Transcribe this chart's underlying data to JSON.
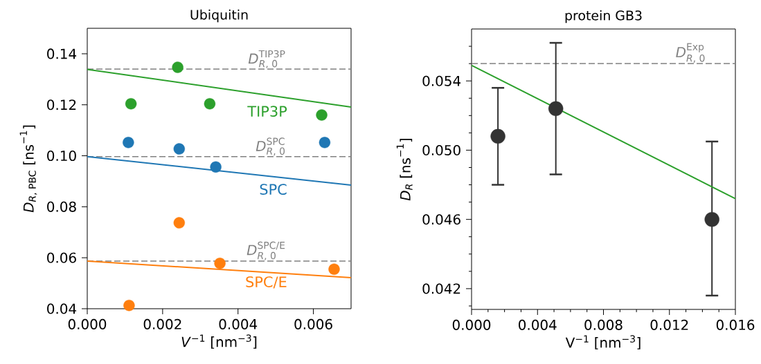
{
  "chart_data": [
    {
      "type": "scatter",
      "title": "Ubiquitin",
      "xlabel": "*V*$^{−1}$ [nm$^{−3}$]",
      "ylabel": "\\text{\\textit{D}}_{\\text{\\textit{R}, PBC}}\\text{ [ns}^{\\text{−1}}\\text{]}",
      "xlim": [
        0,
        0.007
      ],
      "ylim": [
        0.04,
        0.15
      ],
      "xticks": [
        {
          "value": 0,
          "label": "0.000"
        },
        {
          "value": 0.002,
          "label": "0.002"
        },
        {
          "value": 0.004,
          "label": "0.004"
        },
        {
          "value": 0.006,
          "label": "0.006"
        }
      ],
      "yticks": [
        {
          "value": 0.04,
          "label": "0.04"
        },
        {
          "value": 0.06,
          "label": "0.06"
        },
        {
          "value": 0.08,
          "label": "0.08"
        },
        {
          "value": 0.1,
          "label": "0.10"
        },
        {
          "value": 0.12,
          "label": "0.12"
        },
        {
          "value": 0.14,
          "label": "0.14"
        }
      ],
      "series": [
        {
          "name": "TIP3P",
          "marker": "circle",
          "color": "#2ca02c",
          "x": [
            0.00116,
            0.0024,
            0.00325,
            0.00622
          ],
          "values": [
            0.1204,
            0.1347,
            0.1204,
            0.116
          ]
        },
        {
          "type": "line",
          "marker": "none",
          "color": "#2ca02c",
          "x": [
            0,
            0.007
          ],
          "values": [
            0.1339,
            0.1191
          ]
        },
        {
          "name": "SPC",
          "marker": "circle",
          "color": "#1f77b4",
          "x": [
            0.00109,
            0.00244,
            0.00341,
            0.0063
          ],
          "values": [
            0.1052,
            0.1027,
            0.0956,
            0.1052
          ]
        },
        {
          "type": "line",
          "marker": "none",
          "color": "#1f77b4",
          "x": [
            0,
            0.007
          ],
          "values": [
            0.0997,
            0.0885
          ]
        },
        {
          "name": "SPC/E",
          "marker": "circle",
          "color": "#ff7f0e",
          "x": [
            0.00111,
            0.00244,
            0.00352,
            0.00655
          ],
          "values": [
            0.0413,
            0.0737,
            0.0578,
            0.0555
          ]
        },
        {
          "type": "line",
          "marker": "none",
          "color": "#ff7f0e",
          "x": [
            0,
            0.007
          ],
          "values": [
            0.0587,
            0.0522
          ]
        }
      ],
      "ref_lines": [
        {
          "axis": "y",
          "value": 0.134,
          "label": "\\text{\\textit{D}}^{\\text{TIP3P}}_{\\text{\\textit{R}, 0}}",
          "color": "#808080",
          "line_style": "dashed"
        },
        {
          "axis": "y",
          "value": 0.0997,
          "label": "\\text{\\textit{D}}^{\\text{SPC}}_{\\text{\\textit{R}, 0}}",
          "color": "#808080",
          "line_style": "dashed"
        },
        {
          "axis": "y",
          "value": 0.0587,
          "label": "\\text{\\textit{D}}^{\\text{SPC/E}}_{\\text{\\textit{R}, 0}}",
          "color": "#808080",
          "line_style": "dashed"
        }
      ]
    },
    {
      "type": "scatter",
      "title": "protein GB3",
      "xlabel": "V$^{−1}$ [nm$^{−3}$]",
      "ylabel": "\\text{\\textit{D}}_{\\text{\\textit{R}}}\\text{ [ns}^{\\text{−1}}\\text{]}",
      "xlim": [
        0,
        0.016
      ],
      "ylim": [
        0.0408,
        0.057
      ],
      "xticks": [
        {
          "value": 0,
          "label": "0.000"
        },
        {
          "value": 0.001,
          "label": null
        },
        {
          "value": 0.002,
          "label": null
        },
        {
          "value": 0.003,
          "label": null
        },
        {
          "value": 0.004,
          "label": "0.004"
        },
        {
          "value": 0.005,
          "label": null
        },
        {
          "value": 0.006,
          "label": null
        },
        {
          "value": 0.007,
          "label": null
        },
        {
          "value": 0.008,
          "label": "0.008"
        },
        {
          "value": 0.009,
          "label": null
        },
        {
          "value": 0.01,
          "label": null
        },
        {
          "value": 0.011,
          "label": null
        },
        {
          "value": 0.012,
          "label": "0.012"
        },
        {
          "value": 0.013,
          "label": null
        },
        {
          "value": 0.014,
          "label": null
        },
        {
          "value": 0.015,
          "label": null
        },
        {
          "value": 0.016,
          "label": "0.016"
        }
      ],
      "yticks": [
        {
          "value": 0.041,
          "label": null
        },
        {
          "value": 0.042,
          "label": "0.042"
        },
        {
          "value": 0.043,
          "label": null
        },
        {
          "value": 0.044,
          "label": null
        },
        {
          "value": 0.045,
          "label": null
        },
        {
          "value": 0.046,
          "label": "0.046"
        },
        {
          "value": 0.047,
          "label": null
        },
        {
          "value": 0.048,
          "label": null
        },
        {
          "value": 0.049,
          "label": null
        },
        {
          "value": 0.05,
          "label": "0.050"
        },
        {
          "value": 0.051,
          "label": null
        },
        {
          "value": 0.052,
          "label": null
        },
        {
          "value": 0.053,
          "label": null
        },
        {
          "value": 0.054,
          "label": "0.054"
        },
        {
          "value": 0.055,
          "label": null
        },
        {
          "value": 0.056,
          "label": null
        }
      ],
      "series": [
        {
          "marker": "circle",
          "color": "#333333",
          "x": [
            0.0016,
            0.00511,
            0.01458
          ],
          "values": [
            0.0508,
            0.0524,
            0.046
          ],
          "errors": [
            [
              0.048,
              0.0536
            ],
            [
              0.0486,
              0.0562
            ],
            [
              0.0416,
              0.0505
            ]
          ]
        },
        {
          "type": "line",
          "marker": "none",
          "color": "#2ca02c",
          "x": [
            0,
            0.016
          ],
          "values": [
            0.0549,
            0.0472
          ]
        }
      ],
      "ref_lines": [
        {
          "axis": "y",
          "value": 0.055,
          "label": "\\text{\\textit{D}}^{\\text{Exp}}_{\\text{\\textit{R}, 0}}",
          "color": "#808080",
          "line_style": "dashed"
        }
      ]
    }
  ]
}
